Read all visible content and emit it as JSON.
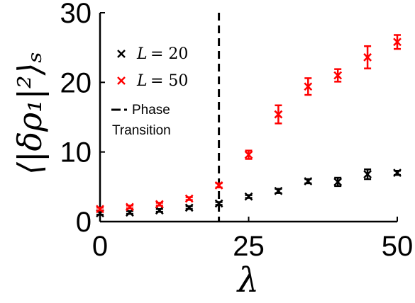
{
  "chart_data": {
    "type": "scatter",
    "xlabel": "λ",
    "ylabel": "⟨|δρ₁|²⟩ₛ",
    "xlim": [
      0,
      50
    ],
    "ylim": [
      0,
      30
    ],
    "x_ticks": [
      0,
      25,
      50
    ],
    "y_ticks": [
      0,
      10,
      20,
      30
    ],
    "grid": false,
    "legend_position": "top-left",
    "phase_transition_x": 20,
    "series": [
      {
        "name": "L = 20",
        "color": "#000000",
        "marker": "x",
        "x": [
          0,
          5,
          10,
          15,
          20,
          25,
          30,
          35,
          40,
          45,
          50
        ],
        "y": [
          1.2,
          1.3,
          1.6,
          2.0,
          2.6,
          3.6,
          4.4,
          5.8,
          5.7,
          6.8,
          7.0
        ],
        "err": [
          0.2,
          0.2,
          0.2,
          0.2,
          0.2,
          0.2,
          0.3,
          0.3,
          0.6,
          0.7,
          0.3
        ]
      },
      {
        "name": "L = 50",
        "color": "#ff0000",
        "marker": "x",
        "x": [
          0,
          5,
          10,
          15,
          20,
          25,
          30,
          35,
          40,
          45,
          50
        ],
        "y": [
          1.8,
          2.1,
          2.5,
          3.3,
          5.2,
          9.6,
          15.4,
          19.4,
          21.0,
          23.6,
          25.8
        ],
        "err": [
          0.2,
          0.2,
          0.2,
          0.2,
          0.3,
          0.6,
          1.3,
          1.2,
          0.9,
          1.6,
          1.0
        ]
      }
    ],
    "legend": [
      {
        "label_prefix": "L",
        "label_value": "= 20",
        "color": "#000000",
        "marker": "x"
      },
      {
        "label_prefix": "L",
        "label_value": "= 50",
        "color": "#ff0000",
        "marker": "x"
      },
      {
        "label_line1": "Phase",
        "label_line2": "Transition",
        "color": "#000000",
        "marker": "dash-dot"
      }
    ]
  }
}
